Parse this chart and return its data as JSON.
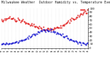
{
  "title": "Milwaukee Weather  Outdoor Humidity vs. Temperature Every 5 Minutes",
  "title_fontsize": 3.5,
  "background_color": "#ffffff",
  "plot_bg_color": "#ffffff",
  "grid_color": "#c8c8c8",
  "red_color": "#dd0000",
  "blue_color": "#0000cc",
  "ylim": [
    0,
    100
  ],
  "right_ticks": [
    0,
    10,
    20,
    30,
    40,
    50,
    60,
    70,
    80,
    90,
    100
  ],
  "right_tick_labels": [
    "0",
    "10",
    "20",
    "30",
    "40",
    "50",
    "60",
    "70",
    "80",
    "90",
    "100"
  ],
  "tick_fontsize": 2.8,
  "humidity_waypoints_x": [
    0.0,
    0.04,
    0.1,
    0.18,
    0.28,
    0.38,
    0.45,
    0.52,
    0.58,
    0.65,
    0.72,
    0.8,
    0.88,
    0.95,
    1.0
  ],
  "humidity_waypoints_y": [
    68,
    72,
    76,
    72,
    65,
    55,
    50,
    45,
    48,
    52,
    60,
    70,
    80,
    90,
    95
  ],
  "temp_waypoints_x": [
    0.0,
    0.04,
    0.1,
    0.18,
    0.28,
    0.38,
    0.45,
    0.52,
    0.58,
    0.65,
    0.72,
    0.8,
    0.88,
    0.95,
    1.0
  ],
  "temp_waypoints_y": [
    12,
    11,
    12,
    14,
    22,
    35,
    42,
    45,
    43,
    38,
    30,
    22,
    15,
    12,
    11
  ],
  "n_points": 200,
  "noise_hum": 2.5,
  "noise_temp": 1.8,
  "markersize": 0.9
}
